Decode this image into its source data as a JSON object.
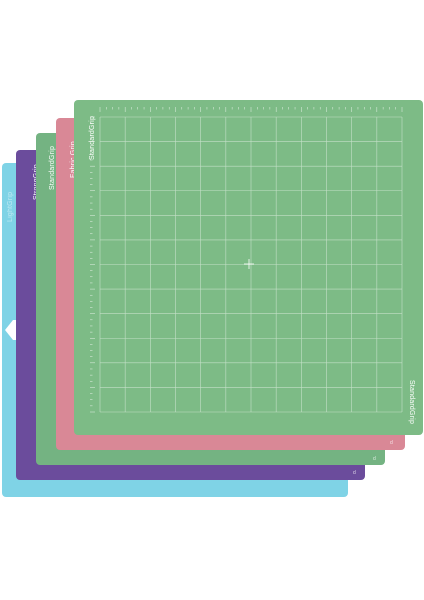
{
  "mats": [
    {
      "id": "blue",
      "label": "LightGrip",
      "color": "#7fd3e6"
    },
    {
      "id": "purple",
      "label": "StrongGrip",
      "color": "#6b4c9c"
    },
    {
      "id": "green-back",
      "label": "StandardGrip",
      "color": "#74b382"
    },
    {
      "id": "pink",
      "label": "Fabric Grip",
      "color": "#d98896"
    },
    {
      "id": "green-front",
      "label": "StandardGrip",
      "color": "#7dbb86"
    }
  ],
  "front_mat": {
    "top_label": "StandardGrip",
    "side_label": "StandardGrip",
    "grid_color": "#ffffff"
  },
  "corner_marks": {
    "green_back": "d",
    "pink": "d",
    "purple": "d"
  }
}
